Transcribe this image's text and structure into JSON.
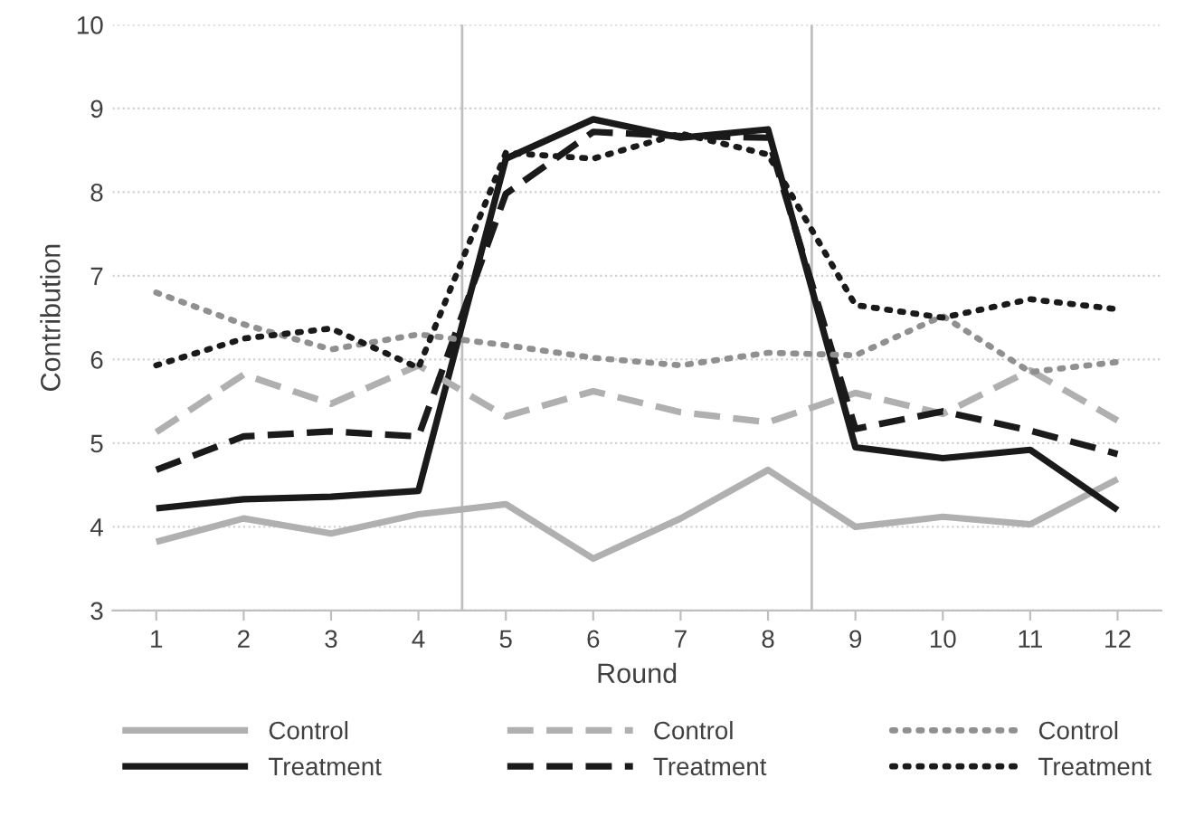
{
  "chart_data": {
    "type": "line",
    "xlabel": "Round",
    "ylabel": "Contribution",
    "x": [
      1,
      2,
      3,
      4,
      5,
      6,
      7,
      8,
      9,
      10,
      11,
      12
    ],
    "xlim": [
      0.5,
      12.5
    ],
    "xticks": [
      1,
      2,
      3,
      4,
      5,
      6,
      7,
      8,
      9,
      10,
      11,
      12
    ],
    "ylim": [
      3,
      10
    ],
    "yticks": [
      3,
      4,
      5,
      6,
      7,
      8,
      9,
      10
    ],
    "grid": "y",
    "legend": "bottom",
    "marker": "none",
    "ref_lines": [
      {
        "axis": "x",
        "value": 4.5,
        "color": "#bfbfbf"
      },
      {
        "axis": "x",
        "value": 8.5,
        "color": "#bfbfbf"
      }
    ],
    "series": [
      {
        "name": "Control",
        "color": "#b0b0b0",
        "line_style": "solid",
        "values": [
          3.82,
          4.1,
          3.92,
          4.15,
          4.27,
          3.62,
          4.1,
          4.68,
          4.0,
          4.12,
          4.03,
          4.57
        ]
      },
      {
        "name": "Treatment",
        "color": "#1a1a1a",
        "line_style": "solid",
        "values": [
          4.22,
          4.33,
          4.36,
          4.43,
          8.4,
          8.87,
          8.65,
          8.75,
          4.95,
          4.82,
          4.92,
          4.2
        ]
      },
      {
        "name": "Control",
        "color": "#b0b0b0",
        "line_style": "dashed",
        "values": [
          5.13,
          5.82,
          5.47,
          5.93,
          5.32,
          5.62,
          5.37,
          5.25,
          5.6,
          5.35,
          5.87,
          5.27
        ]
      },
      {
        "name": "Treatment",
        "color": "#1a1a1a",
        "line_style": "dashed",
        "values": [
          4.68,
          5.08,
          5.14,
          5.08,
          7.98,
          8.72,
          8.67,
          8.65,
          5.17,
          5.38,
          5.15,
          4.87
        ]
      },
      {
        "name": "Control",
        "color": "#909090",
        "line_style": "dotted",
        "values": [
          6.8,
          6.42,
          6.12,
          6.3,
          6.17,
          6.02,
          5.93,
          6.08,
          6.05,
          6.52,
          5.85,
          5.97
        ]
      },
      {
        "name": "Treatment",
        "color": "#1a1a1a",
        "line_style": "dotted",
        "values": [
          5.93,
          6.25,
          6.37,
          5.9,
          8.47,
          8.4,
          8.7,
          8.45,
          6.65,
          6.5,
          6.72,
          6.6
        ]
      }
    ]
  }
}
